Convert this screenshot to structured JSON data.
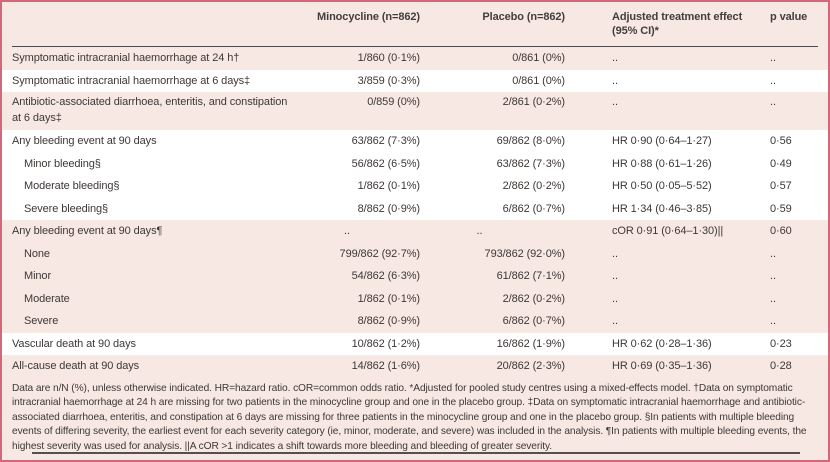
{
  "table": {
    "header": {
      "col_label": "",
      "col_minocycline": "Minocycline (n=862)",
      "col_placebo": "Placebo (n=862)",
      "col_effect": "Adjusted treatment effect (95% CI)*",
      "col_pvalue": "p value"
    },
    "rows": [
      {
        "label": "Symptomatic intracranial haemorrhage at 24 h†",
        "minocycline": "1/860 (0·1%)",
        "placebo": "0/861 (0%)",
        "effect": "..",
        "p": ".."
      },
      {
        "label": "Symptomatic intracranial haemorrhage at 6 days‡",
        "minocycline": "3/859 (0·3%)",
        "placebo": "0/861 (0%)",
        "effect": "..",
        "p": ".."
      },
      {
        "label": "Antibiotic-associated diarrhoea, enteritis, and constipation at 6 days‡",
        "minocycline": "0/859 (0%)",
        "placebo": "2/861 (0·2%)",
        "effect": "..",
        "p": ".."
      },
      {
        "label": "Any bleeding event at 90 days",
        "minocycline": "63/862 (7·3%)",
        "placebo": "69/862 (8·0%)",
        "effect": "HR 0·90 (0·64–1·27)",
        "p": "0·56"
      },
      {
        "label": "Minor bleeding§",
        "minocycline": "56/862 (6·5%)",
        "placebo": "63/862 (7·3%)",
        "effect": "HR 0·88 (0·61–1·26)",
        "p": "0·49"
      },
      {
        "label": "Moderate bleeding§",
        "minocycline": "1/862 (0·1%)",
        "placebo": "2/862 (0·2%)",
        "effect": "HR 0·50 (0·05–5·52)",
        "p": "0·57"
      },
      {
        "label": "Severe bleeding§",
        "minocycline": "8/862 (0·9%)",
        "placebo": "6/862 (0·7%)",
        "effect": "HR 1·34 (0·46–3·85)",
        "p": "0·59"
      },
      {
        "label": "Any bleeding event at 90 days¶",
        "minocycline": "..",
        "placebo": "..",
        "effect": "cOR 0·91 (0·64–1·30)||",
        "p": "0·60"
      },
      {
        "label": "None",
        "minocycline": "799/862 (92·7%)",
        "placebo": "793/862 (92·0%)",
        "effect": "..",
        "p": ".."
      },
      {
        "label": "Minor",
        "minocycline": "54/862 (6·3%)",
        "placebo": "61/862 (7·1%)",
        "effect": "..",
        "p": ".."
      },
      {
        "label": "Moderate",
        "minocycline": "1/862 (0·1%)",
        "placebo": "2/862 (0·2%)",
        "effect": "..",
        "p": ".."
      },
      {
        "label": "Severe",
        "minocycline": "8/862 (0·9%)",
        "placebo": "6/862 (0·7%)",
        "effect": "..",
        "p": ".."
      },
      {
        "label": "Vascular death at 90 days",
        "minocycline": "10/862 (1·2%)",
        "placebo": "16/862 (1·9%)",
        "effect": "HR 0·62 (0·28–1·36)",
        "p": "0·23"
      },
      {
        "label": "All-cause death at 90 days",
        "minocycline": "14/862 (1·6%)",
        "placebo": "20/862 (2·3%)",
        "effect": "HR 0·69 (0·35–1·36)",
        "p": "0·28"
      }
    ],
    "footnote": "Data are n/N (%), unless otherwise indicated. HR=hazard ratio. cOR=common odds ratio. *Adjusted for pooled study centres using a mixed-effects model. †Data on symptomatic intracranial haemorrhage at 24 h are missing for two patients in the minocycline group and one in the placebo group. ‡Data on symptomatic intracranial haemorrhage and antibiotic-associated diarrhoea, enteritis, and constipation at 6 days are missing for three patients in the minocycline group and one in the placebo group. §In patients with multiple bleeding events of differing severity, the earliest event for each severity category (ie, minor, moderate, and severe) was included in the analysis. ¶In patients with multiple bleeding events, the highest severity was used for analysis. ||A cOR >1 indicates a shift towards more bleeding and bleeding of greater severity."
  },
  "colors": {
    "outer_border": "#d1697b",
    "background_pink": "#f8e8e4",
    "stripe_white": "#ffffff",
    "rule_dark": "#4f4a49",
    "text": "#3d3836"
  }
}
